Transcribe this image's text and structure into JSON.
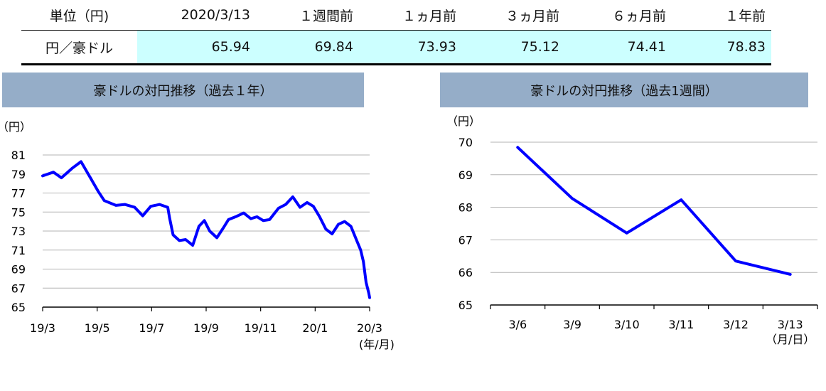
{
  "table": {
    "headers": [
      "単位（円)",
      "2020/3/13",
      "１週間前",
      "１ヵ月前",
      "３ヵ月前",
      "６ヵ月前",
      "１年前"
    ],
    "row_label": "円／豪ドル",
    "values": [
      "65.94",
      "69.84",
      "73.93",
      "75.12",
      "74.41",
      "78.83"
    ],
    "highlight_color": "#ccffff"
  },
  "chart_data": [
    {
      "type": "line",
      "title": "豪ドルの対円推移（過去１年）",
      "ylabel": "（円）",
      "xlabel": "(年/月)",
      "x_tick_labels": [
        "19/3",
        "19/5",
        "19/7",
        "19/9",
        "19/11",
        "20/1",
        "20/3"
      ],
      "y_ticks": [
        65,
        67,
        69,
        71,
        73,
        75,
        77,
        79,
        81
      ],
      "ylim": [
        65,
        81
      ],
      "grid": true,
      "color": "#0000ff",
      "series": [
        {
          "x": [
            "19/3/13",
            "19/3/25",
            "19/4/3",
            "19/4/15",
            "19/4/25",
            "19/5/6",
            "19/5/14",
            "19/5/21",
            "19/6/3",
            "19/6/13",
            "19/6/24",
            "19/7/3",
            "19/7/12",
            "19/7/22",
            "19/7/31",
            "19/8/2",
            "19/8/6",
            "19/8/13",
            "19/8/20",
            "19/8/28",
            "19/9/4",
            "19/9/10",
            "19/9/16",
            "19/9/24",
            "19/10/1",
            "19/10/7",
            "19/10/15",
            "19/10/24",
            "19/11/1",
            "19/11/8",
            "19/11/15",
            "19/11/22",
            "19/12/2",
            "19/12/10",
            "19/12/18",
            "19/12/26",
            "20/1/3",
            "20/1/10",
            "20/1/17",
            "20/1/24",
            "20/1/31",
            "20/2/7",
            "20/2/14",
            "20/2/21",
            "20/2/28",
            "20/3/3",
            "20/3/6",
            "20/3/9",
            "20/3/12",
            "20/3/13"
          ],
          "values": [
            78.8,
            79.2,
            78.6,
            79.6,
            80.3,
            78.5,
            77.2,
            76.2,
            75.7,
            75.8,
            75.5,
            74.6,
            75.6,
            75.8,
            75.5,
            74.4,
            72.6,
            72.0,
            72.1,
            71.5,
            73.5,
            74.1,
            73.0,
            72.3,
            73.3,
            74.2,
            74.5,
            74.9,
            74.3,
            74.5,
            74.1,
            74.2,
            75.4,
            75.8,
            76.6,
            75.5,
            76.0,
            75.6,
            74.5,
            73.2,
            72.7,
            73.7,
            74.0,
            73.5,
            71.9,
            71.0,
            69.8,
            67.6,
            66.5,
            66.0
          ]
        }
      ]
    },
    {
      "type": "line",
      "title": "豪ドルの対円推移（過去1週間）",
      "ylabel": "（円）",
      "xlabel": "（月/日）",
      "categories": [
        "3/6",
        "3/9",
        "3/10",
        "3/11",
        "3/12",
        "3/13"
      ],
      "y_ticks": [
        65,
        66,
        67,
        68,
        69,
        70
      ],
      "ylim": [
        65,
        70
      ],
      "grid": true,
      "color": "#0000ff",
      "series": [
        {
          "values": [
            69.84,
            68.27,
            67.21,
            68.23,
            66.35,
            65.94
          ]
        }
      ]
    }
  ]
}
